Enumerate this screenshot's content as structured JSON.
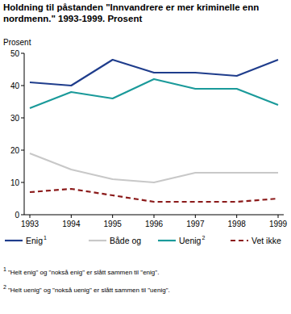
{
  "chart_data": {
    "type": "line",
    "title": "Holdning til påstanden \"Innvandrere er mer kriminelle enn nordmenn.\" 1993-1999. Prosent",
    "y_label": "Prosent",
    "categories": [
      "1993",
      "1994",
      "1995",
      "1996",
      "1997",
      "1998",
      "1999"
    ],
    "ylim": [
      0,
      50
    ],
    "yticks": [
      0,
      10,
      20,
      30,
      40,
      50
    ],
    "grid": false,
    "legend": "bottom",
    "series": [
      {
        "name": "Enig",
        "footnote": "1",
        "color": "#1f3d8c",
        "line_style": "solid",
        "values": [
          41,
          40,
          48,
          44,
          44,
          43,
          48
        ]
      },
      {
        "name": "Både og",
        "color": "#c8c8c8",
        "line_style": "solid",
        "values": [
          19,
          14,
          11,
          10,
          13,
          13,
          13
        ]
      },
      {
        "name": "Uenig",
        "footnote": "2",
        "color": "#1a9a9a",
        "line_style": "solid",
        "values": [
          33,
          38,
          36,
          42,
          39,
          39,
          34
        ]
      },
      {
        "name": "Vet ikke",
        "color": "#8b1a1a",
        "line_style": "dashed",
        "values": [
          7,
          8,
          6,
          4,
          4,
          4,
          5
        ]
      }
    ],
    "footnotes": [
      {
        "mark": "1",
        "text": "\"Helt enig\" og \"nokså enig\" er slått sammen til \"enig\"."
      },
      {
        "mark": "2",
        "text": "\"Helt uenig\" og \"nokså uenig\" er slått sammen til \"uenig\"."
      }
    ]
  }
}
